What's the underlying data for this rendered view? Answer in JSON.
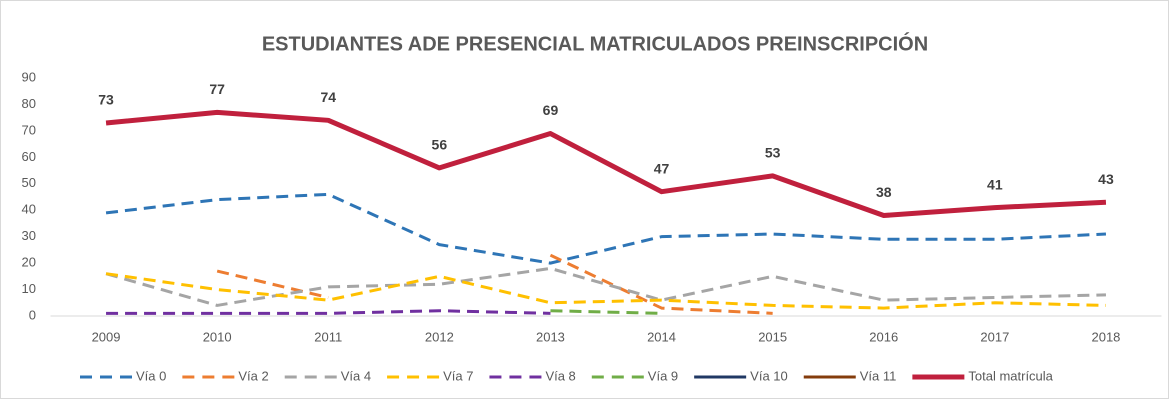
{
  "chart_data": {
    "type": "line",
    "title": "ESTUDIANTES ADE PRESENCIAL MATRICULADOS PREINSCRIPCIÓN",
    "categories": [
      "2009",
      "2010",
      "2011",
      "2012",
      "2013",
      "2014",
      "2015",
      "2016",
      "2017",
      "2018"
    ],
    "ylim": [
      0,
      90
    ],
    "yticks": [
      0,
      10,
      20,
      30,
      40,
      50,
      60,
      70,
      80,
      90
    ],
    "grid": false,
    "legend": "bottom",
    "series": [
      {
        "name": "Vía 0",
        "color": "#2e75b6",
        "dashed": true,
        "values": [
          39,
          44,
          46,
          27,
          20,
          30,
          31,
          29,
          29,
          31
        ]
      },
      {
        "name": "Vía 2",
        "color": "#ed7d31",
        "dashed": true,
        "values": [
          null,
          17,
          7,
          null,
          23,
          3,
          1,
          null,
          null,
          null
        ]
      },
      {
        "name": "Vía 4",
        "color": "#a5a5a5",
        "dashed": true,
        "values": [
          16,
          4,
          11,
          12,
          18,
          6,
          15,
          6,
          7,
          8
        ]
      },
      {
        "name": "Vía 7",
        "color": "#ffc000",
        "dashed": true,
        "values": [
          16,
          10,
          6,
          15,
          5,
          6,
          4,
          3,
          5,
          4
        ]
      },
      {
        "name": "Vía 8",
        "color": "#7030a0",
        "dashed": true,
        "values": [
          1,
          1,
          1,
          2,
          1,
          null,
          null,
          null,
          null,
          null
        ]
      },
      {
        "name": "Vía 9",
        "color": "#70ad47",
        "dashed": true,
        "values": [
          null,
          null,
          null,
          null,
          2,
          1,
          null,
          null,
          null,
          null
        ]
      },
      {
        "name": "Vía 10",
        "color": "#203864",
        "dashed": false,
        "values": [
          null,
          null,
          null,
          null,
          null,
          null,
          null,
          null,
          null,
          null
        ]
      },
      {
        "name": "Vía 11",
        "color": "#843c0c",
        "dashed": false,
        "values": [
          null,
          null,
          null,
          null,
          null,
          null,
          null,
          null,
          null,
          null
        ]
      },
      {
        "name": "Total matrícula",
        "color": "#c0203d",
        "dashed": false,
        "thick": true,
        "show_labels": true,
        "values": [
          73,
          77,
          74,
          56,
          69,
          47,
          53,
          38,
          41,
          43
        ]
      }
    ]
  }
}
